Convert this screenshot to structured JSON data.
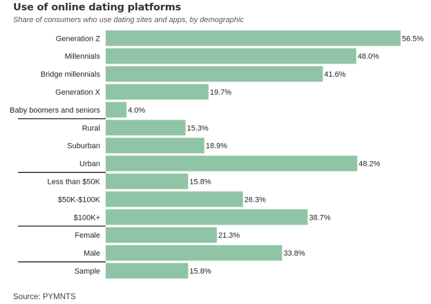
{
  "title": "Use of online dating platforms",
  "subtitle": "Share of consumers who use dating sites and apps, by demographic",
  "source": "Source: PYMNTS",
  "colors": {
    "bar": "#8fc5a6",
    "bar_edge": "#7ab591",
    "separator": "#000000"
  },
  "chart_data": {
    "type": "bar",
    "orientation": "horizontal",
    "categories": [
      "Generation Z",
      "Millennials",
      "Bridge millennials",
      "Generation X",
      "Baby boomers and seniors",
      "Rural",
      "Suburban",
      "Urban",
      "Less than $50K",
      "$50K-$100K",
      "$100K+",
      "Female",
      "Male",
      "Sample"
    ],
    "values": [
      56.5,
      48.0,
      41.6,
      19.7,
      4.0,
      15.3,
      18.9,
      48.2,
      15.8,
      26.3,
      38.7,
      21.3,
      33.8,
      15.8
    ],
    "value_labels": [
      "56.5%",
      "48.0%",
      "41.6%",
      "19.7%",
      "4.0%",
      "15.3%",
      "18.9%",
      "48.2%",
      "15.8%",
      "26.3%",
      "38.7%",
      "21.3%",
      "33.8%",
      "15.8%"
    ],
    "group_separators_after": [
      "Baby boomers and seniors",
      "Urban",
      "$100K+",
      "Male"
    ],
    "xlim": [
      0,
      56.5
    ],
    "grid": false,
    "legend": "none"
  }
}
